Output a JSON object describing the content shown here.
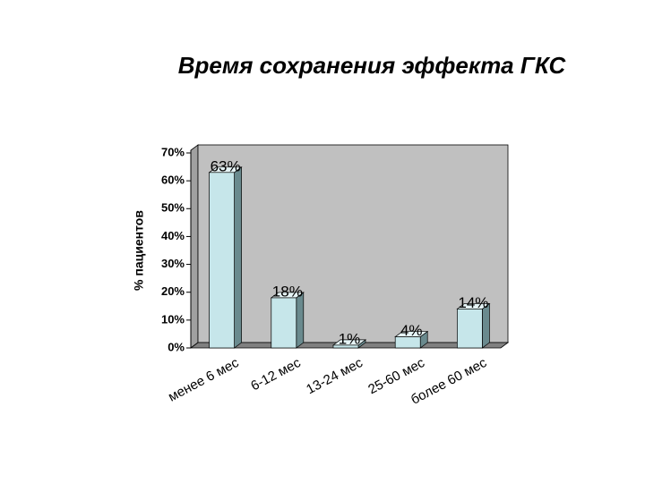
{
  "chart_data": {
    "type": "bar3d",
    "title": "Время сохранения эффекта ГКС",
    "y_label": "% пациентов",
    "categories": [
      "менее 6 мес",
      "6-12 мес",
      "13-24 мес",
      "25-60 мес",
      "более 60 мес"
    ],
    "values": [
      63,
      18,
      1,
      4,
      14
    ],
    "value_labels": [
      "63%",
      "18%",
      "1%",
      "4%",
      "14%"
    ],
    "color": "#c6e6ea",
    "ylim": [
      0,
      70
    ],
    "yticks": [
      {
        "value": 0,
        "label": "0%"
      },
      {
        "value": 10,
        "label": "10%"
      },
      {
        "value": 20,
        "label": "20%"
      },
      {
        "value": 30,
        "label": "30%"
      },
      {
        "value": 40,
        "label": "40%"
      },
      {
        "value": 50,
        "label": "50%"
      },
      {
        "value": 60,
        "label": "60%"
      },
      {
        "value": 70,
        "label": "70%"
      }
    ]
  }
}
